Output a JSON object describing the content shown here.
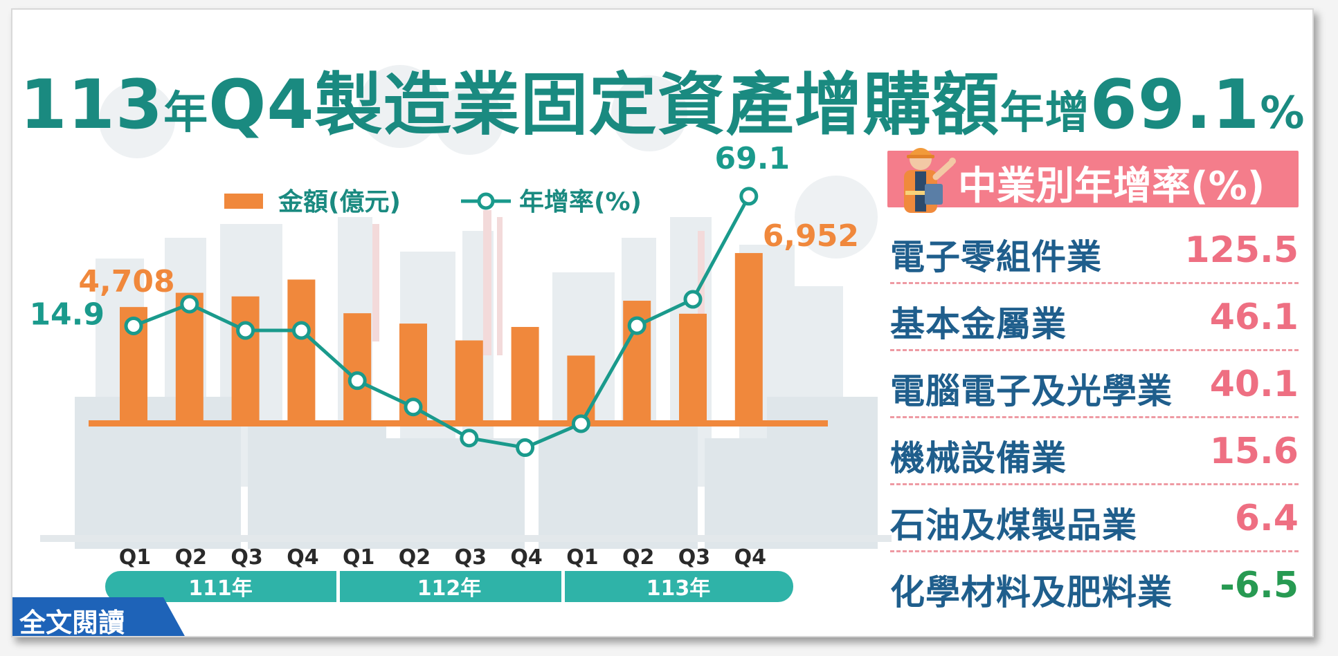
{
  "title": {
    "part1": "113",
    "part2": "年",
    "part3": "Q4製造業固定資產增購額",
    "part4": "年增",
    "part5": "69.1",
    "part6": "%"
  },
  "legend": {
    "bar_label": "金額(億元)",
    "line_label": "年增率(%)"
  },
  "chart_data": {
    "type": "bar",
    "categories": [
      "Q1",
      "Q2",
      "Q3",
      "Q4",
      "Q1",
      "Q2",
      "Q3",
      "Q4",
      "Q1",
      "Q2",
      "Q3",
      "Q4"
    ],
    "year_groups": [
      {
        "label": "111年",
        "span": 4
      },
      {
        "label": "112年",
        "span": 4
      },
      {
        "label": "113年",
        "span": 4
      }
    ],
    "series": [
      {
        "name": "金額(億元)",
        "type": "bar",
        "color": "#f0883c",
        "values": [
          4708,
          5300,
          5150,
          5850,
          4450,
          4020,
          3320,
          3880,
          2690,
          4970,
          4430,
          6952
        ]
      },
      {
        "name": "年增率(%)",
        "type": "line",
        "color": "#1a9a8c",
        "values": [
          14.9,
          24.0,
          13.0,
          13.0,
          -8.0,
          -19.0,
          -32.0,
          -36.0,
          -26.0,
          15.0,
          26.0,
          69.1
        ]
      }
    ],
    "data_labels": [
      {
        "series": 0,
        "index": 0,
        "text": "4,708"
      },
      {
        "series": 0,
        "index": 11,
        "text": "6,952"
      },
      {
        "series": 1,
        "index": 0,
        "text": "14.9"
      },
      {
        "series": 1,
        "index": 11,
        "text": "69.1"
      }
    ],
    "ylim_bar": [
      0,
      7400
    ],
    "ylim_line": [
      -50,
      80
    ],
    "legend_position": "top-left",
    "grid": false
  },
  "sector_panel": {
    "title": "中業別年增率(%)",
    "items": [
      {
        "name": "電子零組件業",
        "value": "125.5"
      },
      {
        "name": "基本金屬業",
        "value": "46.1"
      },
      {
        "name": "電腦電子及光學業",
        "value": "40.1"
      },
      {
        "name": "機械設備業",
        "value": "15.6"
      },
      {
        "name": "石油及煤製品業",
        "value": "6.4"
      },
      {
        "name": "化學材料及肥料業",
        "value": "-6.5"
      }
    ]
  },
  "read_more": {
    "label": "全文閱讀"
  },
  "colors": {
    "teal": "#1a8a80",
    "bar": "#f0883c",
    "pink": "#f47d8b",
    "negative": "#279a52",
    "sector_name": "#1f5e8c"
  }
}
